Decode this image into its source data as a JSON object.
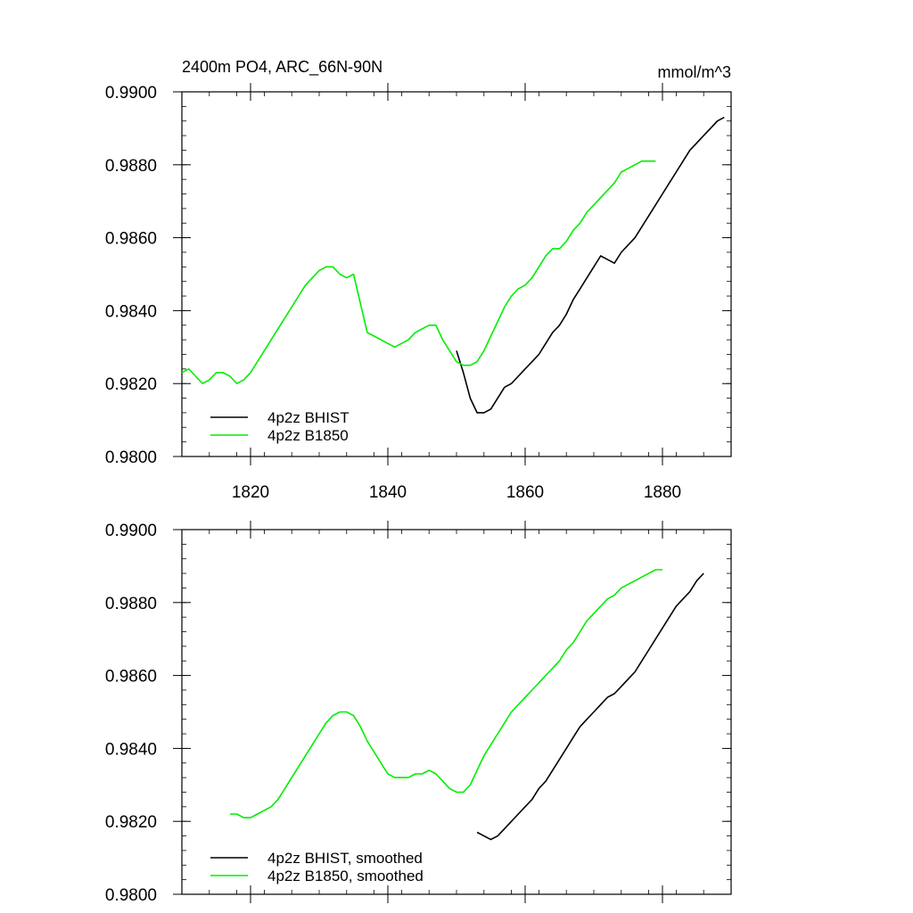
{
  "figure": {
    "title_left": "2400m PO4, ARC_66N-90N",
    "title_right": "mmol/m^3"
  },
  "chart_data": [
    {
      "type": "line",
      "name": "raw",
      "xlim": [
        1810,
        1890
      ],
      "ylim": [
        0.98,
        0.99
      ],
      "yticks": [
        "0.9800",
        "0.9820",
        "0.9840",
        "0.9860",
        "0.9880",
        "0.9900"
      ],
      "ytick_values": [
        0.98,
        0.982,
        0.984,
        0.986,
        0.988,
        0.99
      ],
      "xticks": [
        "1820",
        "1840",
        "1860",
        "1880"
      ],
      "xtick_values": [
        1820,
        1840,
        1860,
        1880
      ],
      "grid": false,
      "legend_position": "bottom-left",
      "series": [
        {
          "name": "4p2z BHIST",
          "color": "#000000",
          "x": [
            1850,
            1851,
            1852,
            1853,
            1854,
            1855,
            1856,
            1857,
            1858,
            1859,
            1860,
            1861,
            1862,
            1863,
            1864,
            1865,
            1866,
            1867,
            1868,
            1869,
            1870,
            1871,
            1872,
            1873,
            1874,
            1875,
            1876,
            1877,
            1878,
            1879,
            1880,
            1881,
            1882,
            1883,
            1884,
            1885,
            1886,
            1887,
            1888,
            1889
          ],
          "values": [
            0.9829,
            0.9823,
            0.9816,
            0.9812,
            0.9812,
            0.9813,
            0.9816,
            0.9819,
            0.982,
            0.9822,
            0.9824,
            0.9826,
            0.9828,
            0.9831,
            0.9834,
            0.9836,
            0.9839,
            0.9843,
            0.9846,
            0.9849,
            0.9852,
            0.9855,
            0.9854,
            0.9853,
            0.9856,
            0.9858,
            0.986,
            0.9863,
            0.9866,
            0.9869,
            0.9872,
            0.9875,
            0.9878,
            0.9881,
            0.9884,
            0.9886,
            0.9888,
            0.989,
            0.9892,
            0.9893
          ]
        },
        {
          "name": "4p2z B1850",
          "color": "#00ee00",
          "x": [
            1810,
            1811,
            1812,
            1813,
            1814,
            1815,
            1816,
            1817,
            1818,
            1819,
            1820,
            1821,
            1822,
            1823,
            1824,
            1825,
            1826,
            1827,
            1828,
            1829,
            1830,
            1831,
            1832,
            1833,
            1834,
            1835,
            1836,
            1837,
            1838,
            1839,
            1840,
            1841,
            1842,
            1843,
            1844,
            1845,
            1846,
            1847,
            1848,
            1849,
            1850,
            1851,
            1852,
            1853,
            1854,
            1855,
            1856,
            1857,
            1858,
            1859,
            1860,
            1861,
            1862,
            1863,
            1864,
            1865,
            1866,
            1867,
            1868,
            1869,
            1870,
            1871,
            1872,
            1873,
            1874,
            1875,
            1876,
            1877,
            1878,
            1879
          ],
          "values": [
            0.9823,
            0.9824,
            0.9822,
            0.982,
            0.9821,
            0.9823,
            0.9823,
            0.9822,
            0.982,
            0.9821,
            0.9823,
            0.9826,
            0.9829,
            0.9832,
            0.9835,
            0.9838,
            0.9841,
            0.9844,
            0.9847,
            0.9849,
            0.9851,
            0.9852,
            0.9852,
            0.985,
            0.9849,
            0.985,
            0.9842,
            0.9834,
            0.9833,
            0.9832,
            0.9831,
            0.983,
            0.9831,
            0.9832,
            0.9834,
            0.9835,
            0.9836,
            0.9836,
            0.9832,
            0.9829,
            0.9826,
            0.9825,
            0.9825,
            0.9826,
            0.9829,
            0.9833,
            0.9837,
            0.9841,
            0.9844,
            0.9846,
            0.9847,
            0.9849,
            0.9852,
            0.9855,
            0.9857,
            0.9857,
            0.9859,
            0.9862,
            0.9864,
            0.9867,
            0.9869,
            0.9871,
            0.9873,
            0.9875,
            0.9878,
            0.9879,
            0.988,
            0.9881,
            0.9881,
            0.9881
          ]
        }
      ]
    },
    {
      "type": "line",
      "name": "smoothed",
      "xlim": [
        1810,
        1890
      ],
      "ylim": [
        0.98,
        0.99
      ],
      "yticks": [
        "0.9800",
        "0.9820",
        "0.9840",
        "0.9860",
        "0.9880",
        "0.9900"
      ],
      "ytick_values": [
        0.98,
        0.982,
        0.984,
        0.986,
        0.988,
        0.99
      ],
      "xtick_values": [
        1820,
        1840,
        1860,
        1880
      ],
      "grid": false,
      "legend_position": "bottom-left",
      "series": [
        {
          "name": "4p2z BHIST, smoothed",
          "color": "#000000",
          "x": [
            1853,
            1854,
            1855,
            1856,
            1857,
            1858,
            1859,
            1860,
            1861,
            1862,
            1863,
            1864,
            1865,
            1866,
            1867,
            1868,
            1869,
            1870,
            1871,
            1872,
            1873,
            1874,
            1875,
            1876,
            1877,
            1878,
            1879,
            1880,
            1881,
            1882,
            1883,
            1884,
            1885,
            1886
          ],
          "values": [
            0.9817,
            0.9816,
            0.9815,
            0.9816,
            0.9818,
            0.982,
            0.9822,
            0.9824,
            0.9826,
            0.9829,
            0.9831,
            0.9834,
            0.9837,
            0.984,
            0.9843,
            0.9846,
            0.9848,
            0.985,
            0.9852,
            0.9854,
            0.9855,
            0.9857,
            0.9859,
            0.9861,
            0.9864,
            0.9867,
            0.987,
            0.9873,
            0.9876,
            0.9879,
            0.9881,
            0.9883,
            0.9886,
            0.9888
          ]
        },
        {
          "name": "4p2z B1850, smoothed",
          "color": "#00ee00",
          "x": [
            1817,
            1818,
            1819,
            1820,
            1821,
            1822,
            1823,
            1824,
            1825,
            1826,
            1827,
            1828,
            1829,
            1830,
            1831,
            1832,
            1833,
            1834,
            1835,
            1836,
            1837,
            1838,
            1839,
            1840,
            1841,
            1842,
            1843,
            1844,
            1845,
            1846,
            1847,
            1848,
            1849,
            1850,
            1851,
            1852,
            1853,
            1854,
            1855,
            1856,
            1857,
            1858,
            1859,
            1860,
            1861,
            1862,
            1863,
            1864,
            1865,
            1866,
            1867,
            1868,
            1869,
            1870,
            1871,
            1872,
            1873,
            1874,
            1875,
            1876,
            1877,
            1878,
            1879,
            1880
          ],
          "values": [
            0.9822,
            0.9822,
            0.9821,
            0.9821,
            0.9822,
            0.9823,
            0.9824,
            0.9826,
            0.9829,
            0.9832,
            0.9835,
            0.9838,
            0.9841,
            0.9844,
            0.9847,
            0.9849,
            0.985,
            0.985,
            0.9849,
            0.9846,
            0.9842,
            0.9839,
            0.9836,
            0.9833,
            0.9832,
            0.9832,
            0.9832,
            0.9833,
            0.9833,
            0.9834,
            0.9833,
            0.9831,
            0.9829,
            0.9828,
            0.9828,
            0.983,
            0.9834,
            0.9838,
            0.9841,
            0.9844,
            0.9847,
            0.985,
            0.9852,
            0.9854,
            0.9856,
            0.9858,
            0.986,
            0.9862,
            0.9864,
            0.9867,
            0.9869,
            0.9872,
            0.9875,
            0.9877,
            0.9879,
            0.9881,
            0.9882,
            0.9884,
            0.9885,
            0.9886,
            0.9887,
            0.9888,
            0.9889,
            0.9889
          ]
        }
      ]
    }
  ]
}
